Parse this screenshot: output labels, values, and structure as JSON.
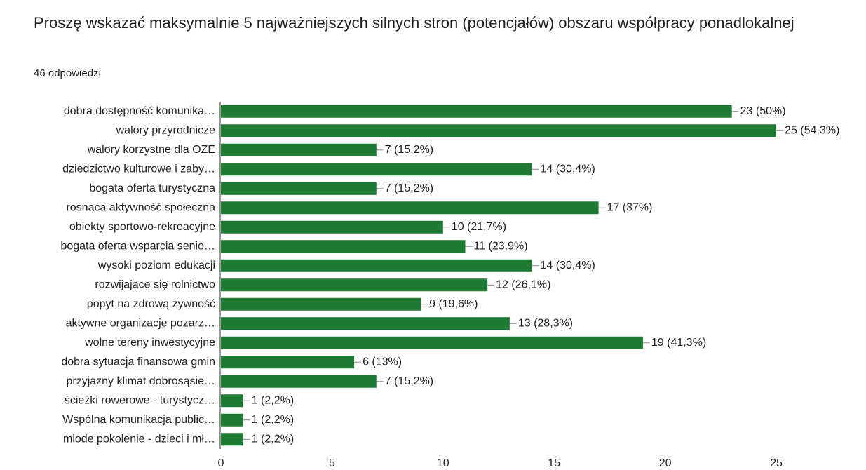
{
  "chart_data": {
    "type": "bar",
    "title": "Proszę wskazać maksymalnie 5 najważniejszych silnych stron (potencjałów) obszaru współpracy ponadlokalnej",
    "subtitle": "46 odpowiedzi",
    "categories": [
      "dobra dostępność komunika…",
      "walory przyrodnicze",
      "walory korzystne dla OZE",
      "dziedzictwo kulturowe i zaby…",
      "bogata oferta turystyczna",
      "rosnąca aktywność społeczna",
      "obiekty sportowo-rekreacyjne",
      "bogata oferta wsparcia senio…",
      "wysoki poziom edukacji",
      "rozwijające się rolnictwo",
      "popyt na zdrową żywność",
      "aktywne organizacje pozarz…",
      "wolne tereny inwestycyjne",
      "dobra sytuacja finansowa gmin",
      "przyjazny klimat dobrosąsie…",
      "ścieżki rowerowe - turystycz…",
      "Wspólna komunikacja public…",
      "mlode pokolenie - dzieci i mł…"
    ],
    "values": [
      23,
      25,
      7,
      14,
      7,
      17,
      10,
      11,
      14,
      12,
      9,
      13,
      19,
      6,
      7,
      1,
      1,
      1
    ],
    "value_labels": [
      "23 (50%)",
      "25 (54,3%)",
      "7 (15,2%)",
      "14 (30,4%)",
      "7 (15,2%)",
      "17 (37%)",
      "10 (21,7%)",
      "11 (23,9%)",
      "14 (30,4%)",
      "12 (26,1%)",
      "9 (19,6%)",
      "13 (28,3%)",
      "19 (41,3%)",
      "6 (13%)",
      "7 (15,2%)",
      "1 (2,2%)",
      "1 (2,2%)",
      "1 (2,2%)"
    ],
    "color": "#1f7a34",
    "xlim": [
      0,
      25
    ],
    "xticks": [
      0,
      5,
      10,
      15,
      20,
      25
    ]
  }
}
